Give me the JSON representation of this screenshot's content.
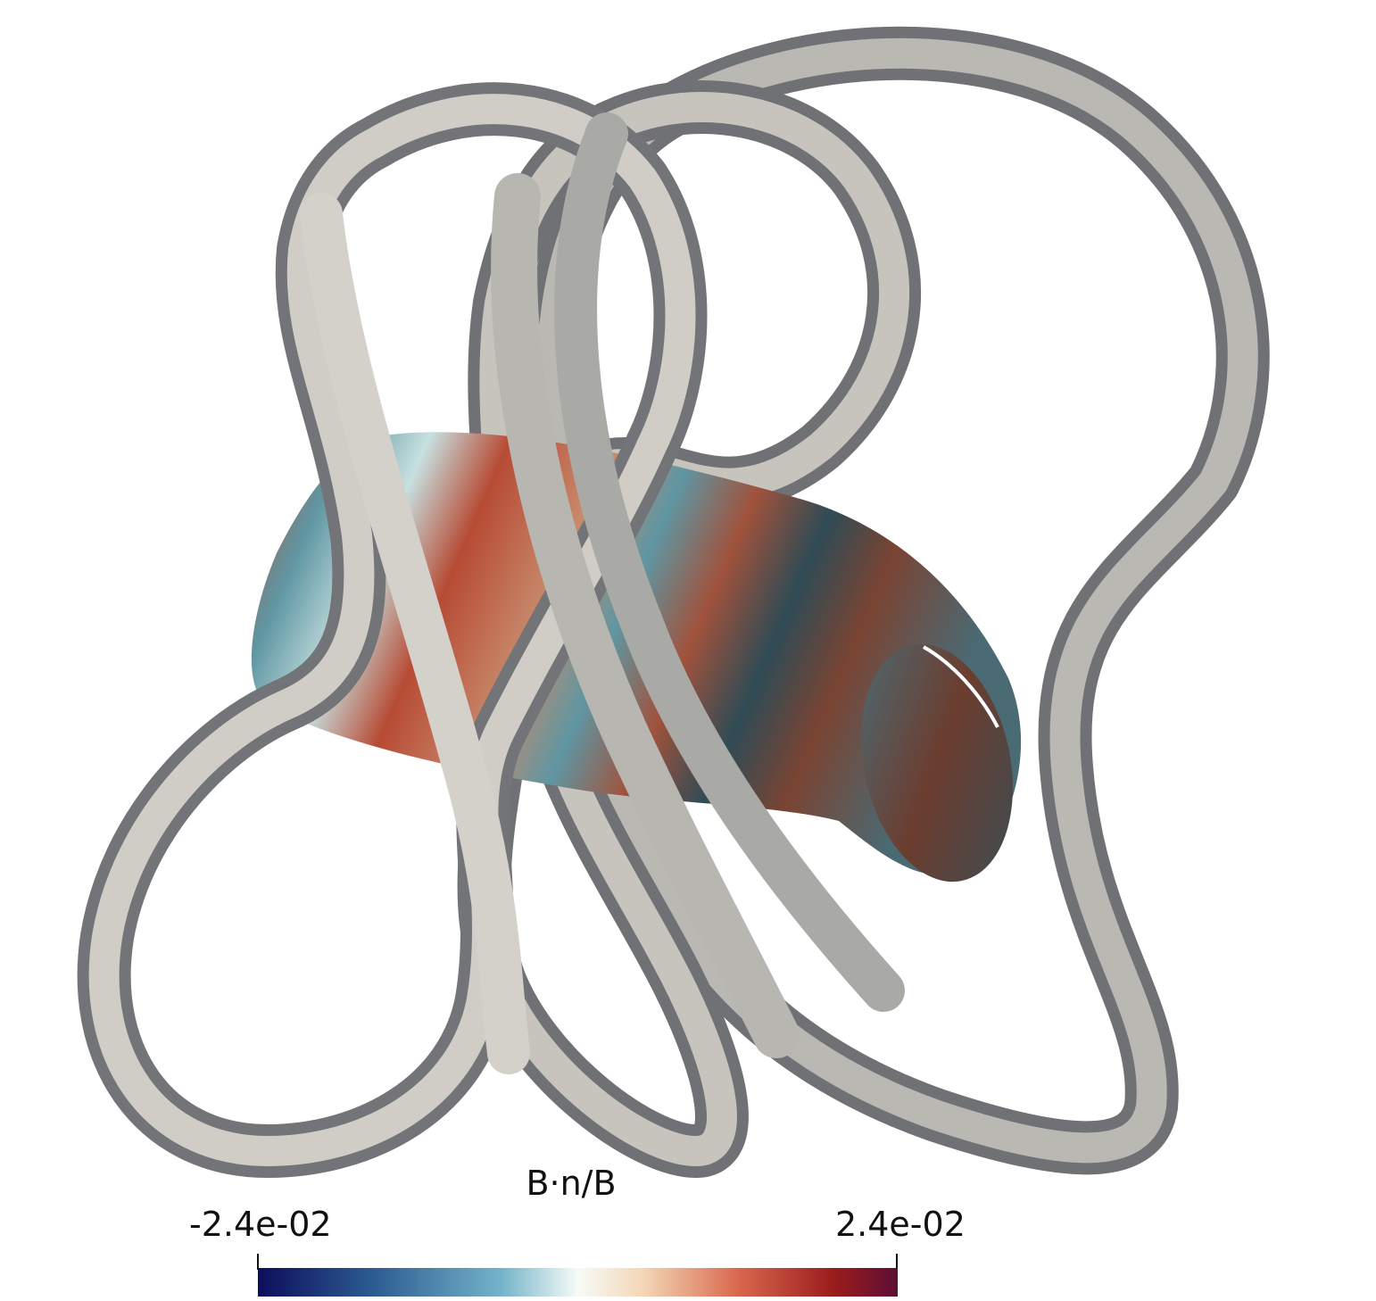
{
  "colorbar": {
    "title": "B·n/B",
    "min_label": "-2.4e-02",
    "max_label": "2.4e-02",
    "min": -0.024,
    "max": 0.024,
    "colormap_stops": [
      "#0d0d5c",
      "#2b5c91",
      "#74b3c9",
      "#e9f6f6",
      "#f4d8b8",
      "#d9684d",
      "#9b1c1c",
      "#5c0e35"
    ]
  },
  "scene": {
    "coil_color": "#c8c6be",
    "coil_shadow": "#6f7174",
    "surface_colors": [
      "#b74b34",
      "#5f96a2",
      "#2f4b55",
      "#7a4433",
      "#cfc2ae"
    ]
  }
}
